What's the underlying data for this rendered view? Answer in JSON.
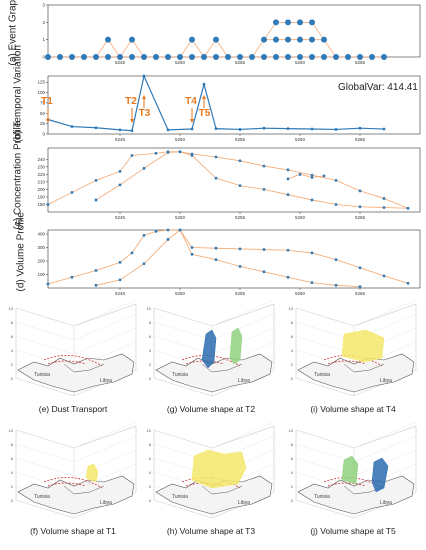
{
  "panels": {
    "a": {
      "label": "(a) Event Graph"
    },
    "b": {
      "label": "(b) Temporal Variation",
      "global_var": "GlobalVar: 414.41",
      "markers": [
        "T1",
        "T2",
        "T3",
        "T4",
        "T5"
      ]
    },
    "c": {
      "label": "(c) Concentration Profile"
    },
    "d": {
      "label": "(d) Volume Profile"
    }
  },
  "thumbnails": [
    {
      "caption": "(e) Dust Transport",
      "places": [
        "Tunisia",
        "Libya"
      ]
    },
    {
      "caption": "(g) Volume shape at T2",
      "places": [
        "Tunisia",
        "Libya"
      ]
    },
    {
      "caption": "(i) Volume shape at T4",
      "places": [
        "Tunisia",
        "Libya"
      ]
    },
    {
      "caption": "(f) Volume shape at T1",
      "places": [
        "Tunisia",
        "Libya"
      ]
    },
    {
      "caption": "(h) Volume shape at T3",
      "places": [
        "Tunisia",
        "Libya"
      ]
    },
    {
      "caption": "(j) Volume shape at T5",
      "places": [
        "Tunisia",
        "Libya"
      ]
    }
  ],
  "chart_data": [
    {
      "type": "scatter",
      "title": "",
      "xlabel": "",
      "ylabel": "(a) Event Graph",
      "xlim": [
        5239,
        5270
      ],
      "ylim": [
        0,
        3
      ],
      "x_ticks": [
        5245,
        5250,
        5255,
        5260,
        5265
      ],
      "y_ticks": [
        0,
        1,
        2,
        3
      ],
      "nodes": {
        "row0": [
          5239,
          5240,
          5241,
          5242,
          5243,
          5244,
          5245,
          5246,
          5247,
          5248,
          5249,
          5250,
          5251,
          5252,
          5253,
          5254,
          5255,
          5256,
          5257,
          5258,
          5259,
          5260,
          5261,
          5262,
          5263,
          5264,
          5265,
          5266,
          5267
        ],
        "row1": [
          5244,
          5246,
          5251,
          5253,
          5257,
          5258,
          5259,
          5260,
          5261,
          5262
        ],
        "row2": [
          5258,
          5259,
          5260,
          5261
        ]
      }
    },
    {
      "type": "line",
      "title": "",
      "ylabel": "(b) Temporal Variation",
      "xlim": [
        5239,
        5270
      ],
      "ylim": [
        0,
        140
      ],
      "x_ticks": [
        5245,
        5250,
        5255,
        5260,
        5265
      ],
      "y_ticks": [
        0,
        25,
        50,
        75,
        100,
        125
      ],
      "x": [
        5239,
        5241,
        5243,
        5245,
        5246,
        5247,
        5249,
        5251,
        5252,
        5253,
        5255,
        5257,
        5259,
        5261,
        5263,
        5265,
        5267
      ],
      "y": [
        35,
        18,
        15,
        10,
        8,
        150,
        10,
        12,
        120,
        13,
        11,
        14,
        13,
        12,
        11,
        14,
        12
      ],
      "markers": [
        {
          "label": "T1",
          "x": 5239
        },
        {
          "label": "T2",
          "x": 5246
        },
        {
          "label": "T3",
          "x": 5247
        },
        {
          "label": "T4",
          "x": 5251
        },
        {
          "label": "T5",
          "x": 5252
        }
      ]
    },
    {
      "type": "line",
      "title": "",
      "ylabel": "(c) Concentration Profile",
      "xlim": [
        5239,
        5270
      ],
      "ylim": [
        170,
        255
      ],
      "x_ticks": [
        5245,
        5250,
        5255,
        5260,
        5265
      ],
      "y_ticks": [
        180,
        190,
        200,
        210,
        220,
        230,
        240
      ],
      "series": [
        {
          "x": [
            5239,
            5241,
            5243,
            5245,
            5246,
            5248,
            5249,
            5250,
            5251,
            5253,
            5255,
            5257,
            5259,
            5261,
            5263,
            5265,
            5267,
            5269
          ],
          "y": [
            180,
            196,
            212,
            224,
            245,
            248,
            250,
            250,
            247,
            243,
            238,
            231,
            226,
            219,
            212,
            198,
            188,
            175
          ]
        },
        {
          "x": [
            5243,
            5245,
            5247,
            5249,
            5250,
            5251,
            5253,
            5255,
            5257,
            5259,
            5261,
            5263,
            5265,
            5267,
            5269
          ],
          "y": [
            186,
            206,
            228,
            249,
            250,
            245,
            215,
            205,
            200,
            193,
            186,
            180,
            177,
            176,
            175
          ]
        },
        {
          "x": [
            5259,
            5260,
            5261,
            5262
          ],
          "y": [
            214,
            220,
            216,
            218
          ]
        }
      ]
    },
    {
      "type": "line",
      "title": "",
      "ylabel": "(d) Volume Profile",
      "xlim": [
        5239,
        5270
      ],
      "ylim": [
        0,
        430
      ],
      "x_ticks": [
        5245,
        5250,
        5255,
        5260,
        5265
      ],
      "y_ticks": [
        100,
        200,
        300,
        400
      ],
      "series": [
        {
          "x": [
            5239,
            5241,
            5243,
            5245,
            5246,
            5247,
            5248,
            5249,
            5250,
            5251,
            5253,
            5255,
            5257,
            5259,
            5261,
            5263,
            5265,
            5267,
            5269
          ],
          "y": [
            30,
            80,
            130,
            190,
            260,
            390,
            420,
            430,
            430,
            300,
            295,
            290,
            285,
            280,
            260,
            210,
            150,
            90,
            35
          ]
        },
        {
          "x": [
            5243,
            5245,
            5247,
            5249,
            5250,
            5251,
            5253,
            5255,
            5257,
            5259,
            5261,
            5263,
            5265
          ],
          "y": [
            20,
            60,
            180,
            360,
            430,
            250,
            210,
            160,
            120,
            80,
            40,
            20,
            10
          ]
        }
      ]
    }
  ],
  "colors": {
    "line": "#f4a56b",
    "point": "#2f7ab8",
    "marker": "#e8781e",
    "sub_line": "#8fb8dc"
  }
}
